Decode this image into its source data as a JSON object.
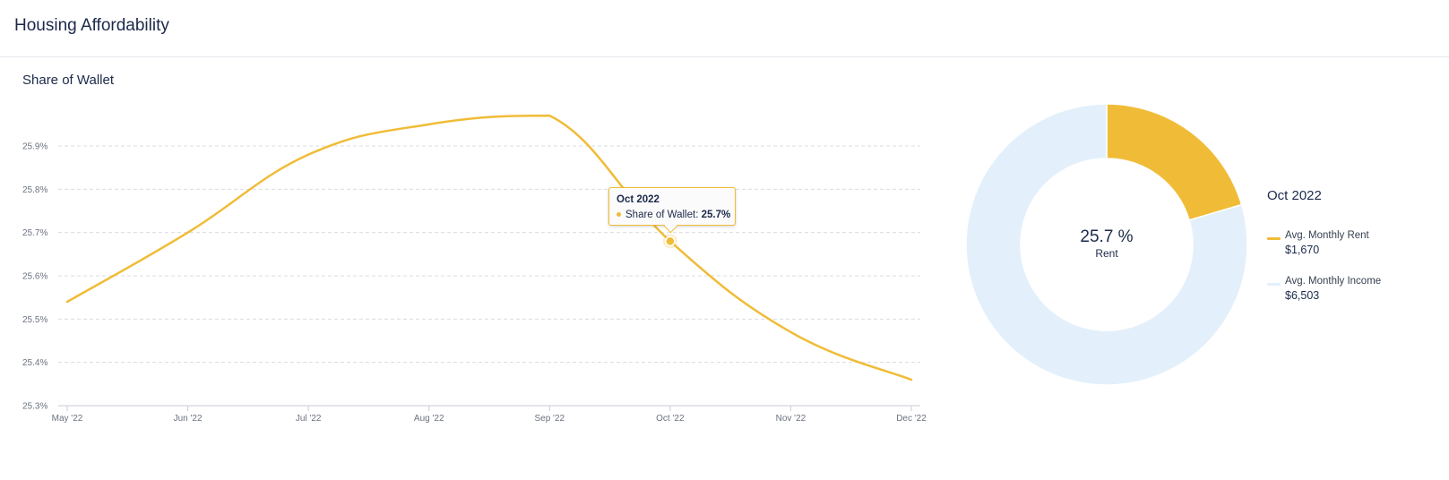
{
  "header": {
    "title": "Housing Affordability"
  },
  "card": {
    "title": "Share of Wallet"
  },
  "chart_data": [
    {
      "type": "line",
      "title": "Share of Wallet",
      "xlabel": "",
      "ylabel": "",
      "categories": [
        "May '22",
        "Jun '22",
        "Jul '22",
        "Aug '22",
        "Sep '22",
        "Oct '22",
        "Nov '22",
        "Dec '22"
      ],
      "y_ticks": [
        25.3,
        25.4,
        25.5,
        25.6,
        25.7,
        25.8,
        25.9
      ],
      "y_tick_labels": [
        "25.3%",
        "25.4%",
        "25.5%",
        "25.6%",
        "25.7%",
        "25.8%",
        "25.9%"
      ],
      "ylim": [
        25.3,
        25.9
      ],
      "grid": "horizontal dashed",
      "series": [
        {
          "color": "#f0bc37",
          "values": [
            25.54,
            25.7,
            25.88,
            25.95,
            25.97,
            25.68,
            25.47,
            25.36
          ]
        }
      ],
      "tooltip": {
        "title": "Oct 2022",
        "series_label": "Share of Wallet: ",
        "value_label": "25.7%",
        "index": 5
      }
    },
    {
      "type": "pie",
      "title": "Oct 2022",
      "center_value": "25.7 %",
      "center_label": "Rent",
      "slices": [
        {
          "name": "Avg. Monthly Rent",
          "value": 1670,
          "value_label": "$1,670",
          "color": "#f0bc37"
        },
        {
          "name": "Avg. Monthly Income",
          "value": 6503,
          "value_label": "$6,503",
          "color": "#e3f0fb"
        }
      ],
      "legend_position": "right"
    }
  ]
}
